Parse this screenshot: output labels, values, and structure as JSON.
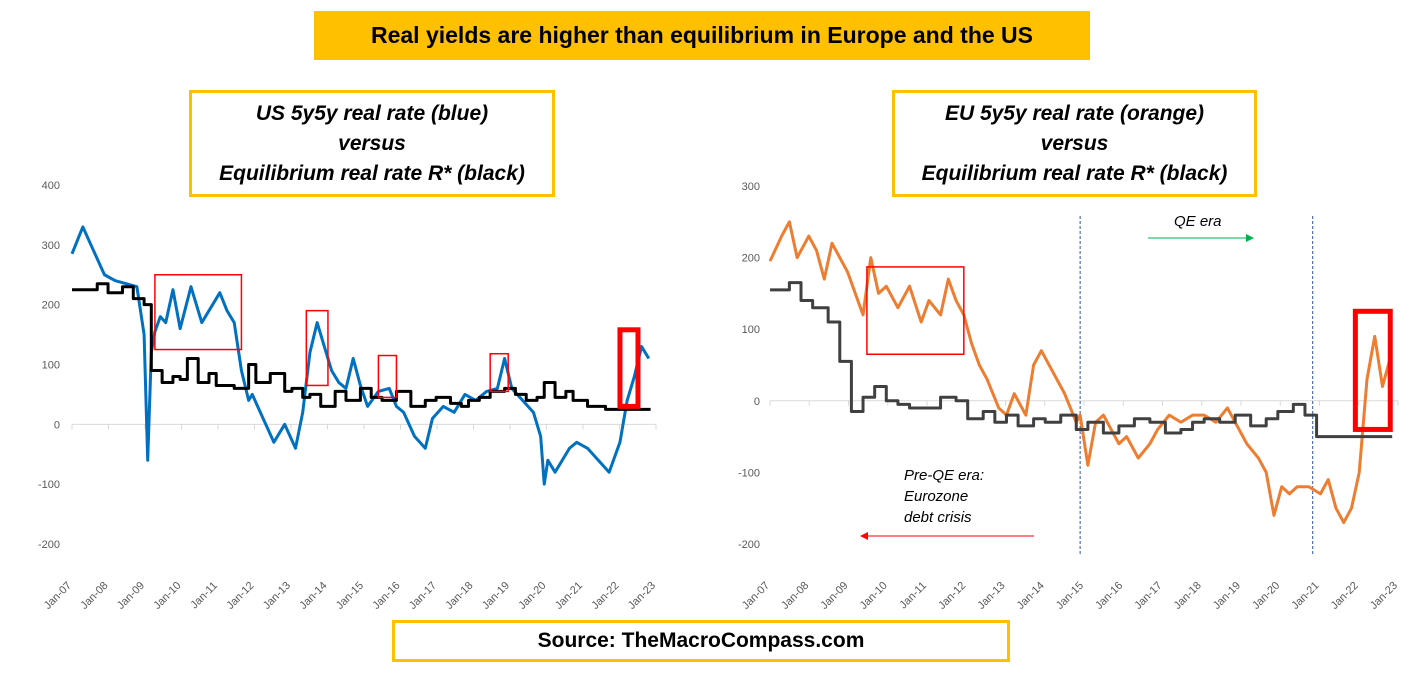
{
  "header": {
    "title": "Real yields are higher than equilibrium in Europe and the US"
  },
  "footer": {
    "source": "Source: TheMacroCompass.com"
  },
  "colors": {
    "banner": "#ffc000",
    "us_series": "#0070c0",
    "eu_series": "#ed7d31",
    "equilibrium": "#000000",
    "highlight_box": "#ff0000",
    "arrow_green": "#00b050",
    "arrow_red": "#ff0000"
  },
  "chart_data": [
    {
      "type": "line",
      "title_lines": [
        "US 5y5y real rate (blue)",
        "versus",
        "Equilibrium real rate R* (black)"
      ],
      "x_ticks": [
        "Jan-07",
        "Jan-08",
        "Jan-09",
        "Jan-10",
        "Jan-11",
        "Jan-12",
        "Jan-13",
        "Jan-14",
        "Jan-15",
        "Jan-16",
        "Jan-17",
        "Jan-18",
        "Jan-19",
        "Jan-20",
        "Jan-21",
        "Jan-22",
        "Jan-23"
      ],
      "y_ticks": [
        "400",
        "300",
        "200",
        "100",
        "0",
        "-100",
        "-200"
      ],
      "ylim": [
        -200,
        400
      ],
      "xlim": [
        2007.0,
        2023.2
      ],
      "series": [
        {
          "color": "#0070c0",
          "x": [
            2007.0,
            2007.3,
            2007.6,
            2007.9,
            2008.2,
            2008.5,
            2008.8,
            2009.0,
            2009.1,
            2009.2,
            2009.3,
            2009.45,
            2009.6,
            2009.8,
            2010.0,
            2010.3,
            2010.6,
            2010.9,
            2011.1,
            2011.3,
            2011.5,
            2011.7,
            2011.9,
            2012.0,
            2012.3,
            2012.6,
            2012.9,
            2013.2,
            2013.4,
            2013.6,
            2013.8,
            2014.0,
            2014.2,
            2014.4,
            2014.6,
            2014.8,
            2015.0,
            2015.2,
            2015.5,
            2015.8,
            2016.0,
            2016.2,
            2016.5,
            2016.8,
            2017.0,
            2017.3,
            2017.6,
            2017.9,
            2018.2,
            2018.5,
            2018.8,
            2019.0,
            2019.2,
            2019.5,
            2019.8,
            2020.0,
            2020.1,
            2020.2,
            2020.4,
            2020.6,
            2020.8,
            2021.0,
            2021.3,
            2021.6,
            2021.9,
            2022.2,
            2022.4,
            2022.6,
            2022.8,
            2023.0
          ],
          "y": [
            285,
            330,
            290,
            250,
            240,
            235,
            230,
            150,
            -60,
            120,
            155,
            180,
            170,
            225,
            160,
            230,
            170,
            200,
            220,
            190,
            170,
            90,
            40,
            50,
            10,
            -30,
            0,
            -40,
            20,
            120,
            170,
            130,
            90,
            70,
            60,
            110,
            65,
            30,
            55,
            60,
            30,
            20,
            -20,
            -40,
            10,
            30,
            20,
            50,
            40,
            55,
            60,
            110,
            60,
            40,
            20,
            -20,
            -100,
            -60,
            -80,
            -60,
            -40,
            -30,
            -40,
            -60,
            -80,
            -30,
            40,
            80,
            130,
            110
          ]
        },
        {
          "color": "#000000",
          "x": [
            2007.0,
            2007.7,
            2008.0,
            2008.4,
            2008.7,
            2009.0,
            2009.2,
            2009.5,
            2009.8,
            2010.0,
            2010.2,
            2010.5,
            2010.8,
            2011.0,
            2011.5,
            2011.9,
            2012.1,
            2012.5,
            2012.9,
            2013.1,
            2013.4,
            2013.6,
            2013.9,
            2014.3,
            2014.6,
            2015.0,
            2015.3,
            2015.6,
            2016.0,
            2016.4,
            2016.8,
            2017.1,
            2017.5,
            2017.8,
            2018.0,
            2018.3,
            2018.6,
            2019.0,
            2019.3,
            2019.6,
            2019.9,
            2020.1,
            2020.4,
            2020.7,
            2020.9,
            2021.3,
            2021.8,
            2022.2,
            2022.8,
            2023.0
          ],
          "y": [
            225,
            235,
            220,
            230,
            210,
            200,
            90,
            70,
            80,
            75,
            110,
            70,
            85,
            65,
            60,
            100,
            70,
            85,
            55,
            60,
            45,
            50,
            30,
            55,
            40,
            60,
            45,
            40,
            55,
            30,
            40,
            45,
            35,
            30,
            40,
            45,
            55,
            60,
            50,
            40,
            45,
            70,
            45,
            55,
            40,
            30,
            25,
            25,
            25,
            25
          ]
        }
      ],
      "highlight_boxes": [
        {
          "x0": 2009.3,
          "x1": 2011.7,
          "y0": 125,
          "y1": 250
        },
        {
          "x0": 2013.5,
          "x1": 2014.1,
          "y0": 65,
          "y1": 190
        },
        {
          "x0": 2015.5,
          "x1": 2016.0,
          "y0": 45,
          "y1": 115
        },
        {
          "x0": 2018.6,
          "x1": 2019.1,
          "y0": 55,
          "y1": 118
        },
        {
          "x0": 2022.2,
          "x1": 2022.7,
          "y0": 30,
          "y1": 158,
          "bold": true
        }
      ]
    },
    {
      "type": "line",
      "title_lines": [
        "EU 5y5y real rate (orange)",
        "versus",
        "Equilibrium real rate R* (black)"
      ],
      "x_ticks": [
        "Jan-07",
        "Jan-08",
        "Jan-09",
        "Jan-10",
        "Jan-11",
        "Jan-12",
        "Jan-13",
        "Jan-14",
        "Jan-15",
        "Jan-16",
        "Jan-17",
        "Jan-18",
        "Jan-19",
        "Jan-20",
        "Jan-21",
        "Jan-22",
        "Jan-23"
      ],
      "y_ticks": [
        "300",
        "200",
        "100",
        "0",
        "-100",
        "-200"
      ],
      "ylim": [
        -200,
        300
      ],
      "xlim": [
        2007.0,
        2023.2
      ],
      "series": [
        {
          "color": "#ed7d31",
          "x": [
            2007.0,
            2007.3,
            2007.5,
            2007.7,
            2007.9,
            2008.0,
            2008.2,
            2008.4,
            2008.6,
            2008.9,
            2009.0,
            2009.2,
            2009.4,
            2009.6,
            2009.8,
            2010.0,
            2010.3,
            2010.6,
            2010.9,
            2011.1,
            2011.4,
            2011.6,
            2011.8,
            2012.0,
            2012.2,
            2012.4,
            2012.6,
            2012.9,
            2013.1,
            2013.3,
            2013.6,
            2013.8,
            2014.0,
            2014.3,
            2014.6,
            2014.9,
            2015.0,
            2015.2,
            2015.4,
            2015.6,
            2015.8,
            2016.0,
            2016.2,
            2016.5,
            2016.8,
            2017.0,
            2017.3,
            2017.6,
            2017.9,
            2018.2,
            2018.5,
            2018.8,
            2019.0,
            2019.3,
            2019.6,
            2019.8,
            2020.0,
            2020.2,
            2020.4,
            2020.6,
            2020.9,
            2021.2,
            2021.4,
            2021.6,
            2021.8,
            2022.0,
            2022.2,
            2022.4,
            2022.6,
            2022.8,
            2023.0
          ],
          "y": [
            195,
            230,
            250,
            200,
            220,
            230,
            210,
            170,
            220,
            190,
            180,
            150,
            120,
            200,
            150,
            160,
            130,
            160,
            110,
            140,
            120,
            170,
            140,
            120,
            80,
            50,
            30,
            -10,
            -20,
            10,
            -20,
            50,
            70,
            40,
            10,
            -30,
            -20,
            -90,
            -30,
            -20,
            -40,
            -60,
            -50,
            -80,
            -60,
            -40,
            -20,
            -30,
            -20,
            -20,
            -30,
            -10,
            -30,
            -60,
            -80,
            -100,
            -160,
            -120,
            -130,
            -120,
            -120,
            -130,
            -110,
            -150,
            -170,
            -150,
            -100,
            30,
            90,
            20,
            60
          ]
        },
        {
          "color": "#404040",
          "x": [
            2007.0,
            2007.5,
            2007.8,
            2008.1,
            2008.5,
            2008.8,
            2009.1,
            2009.4,
            2009.7,
            2010.0,
            2010.3,
            2010.6,
            2011.0,
            2011.4,
            2011.8,
            2012.1,
            2012.5,
            2012.8,
            2013.1,
            2013.4,
            2013.8,
            2014.1,
            2014.5,
            2014.9,
            2015.2,
            2015.6,
            2016.0,
            2016.4,
            2016.8,
            2017.2,
            2017.6,
            2017.9,
            2018.2,
            2018.6,
            2019.0,
            2019.4,
            2019.8,
            2020.1,
            2020.5,
            2020.8,
            2021.1,
            2021.6,
            2022.0,
            2022.5,
            2023.0
          ],
          "y": [
            155,
            165,
            140,
            130,
            110,
            55,
            -15,
            5,
            20,
            0,
            -5,
            -10,
            -10,
            5,
            0,
            -25,
            -15,
            -30,
            -20,
            -35,
            -25,
            -30,
            -20,
            -40,
            -30,
            -45,
            -35,
            -25,
            -30,
            -45,
            -40,
            -30,
            -25,
            -30,
            -20,
            -35,
            -25,
            -15,
            -5,
            -20,
            -50,
            -50,
            -50,
            -50,
            -50
          ]
        }
      ],
      "vertical_lines_x": [
        2015.0,
        2021.0
      ],
      "highlight_boxes": [
        {
          "x0": 2009.5,
          "x1": 2012.0,
          "y0": 65,
          "y1": 187
        },
        {
          "x0": 2022.1,
          "x1": 2023.0,
          "y0": -40,
          "y1": 125,
          "bold": true
        }
      ],
      "annotations": {
        "qe_era": "QE era",
        "pre_qe": [
          "Pre-QE era:",
          "Eurozone",
          "debt crisis"
        ]
      }
    }
  ]
}
